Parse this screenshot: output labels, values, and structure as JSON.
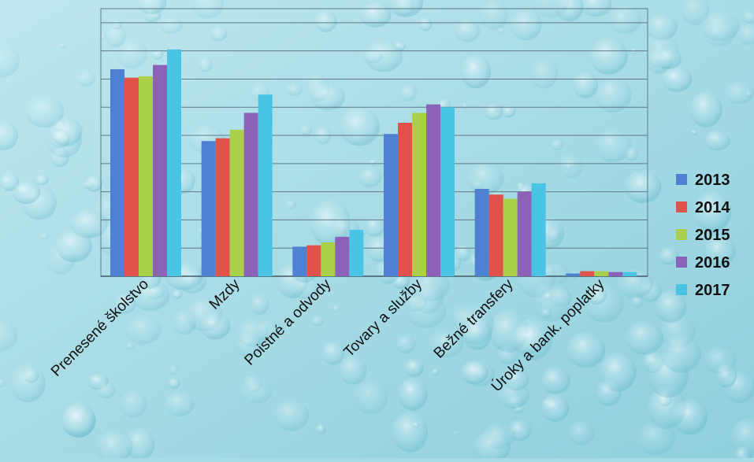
{
  "colors": {
    "background_light": "#bfe7ef",
    "background_dark": "#8fcfdc",
    "gridline": "#5f7b86",
    "axis": "#3f5a66",
    "label_text": "#111111"
  },
  "chart_data": {
    "type": "bar",
    "title": "",
    "xlabel": "",
    "ylabel": "",
    "ylim": [
      0,
      9.5
    ],
    "grid": true,
    "gridline_step": 1,
    "y_tick_labels_shown": false,
    "legend_position": "right",
    "categories": [
      "Prenesené školstvo",
      "Mzdy",
      "Poistné a odvody",
      "Tovary a  služby",
      "Bežné transfery",
      "Úroky a bank. poplatky"
    ],
    "series": [
      {
        "name": "2013",
        "color": "#4f81d3",
        "values": [
          7.35,
          4.8,
          1.05,
          5.05,
          3.1,
          0.1
        ]
      },
      {
        "name": "2014",
        "color": "#e0524a",
        "values": [
          7.05,
          4.9,
          1.1,
          5.45,
          2.9,
          0.18
        ]
      },
      {
        "name": "2015",
        "color": "#a9cf4b",
        "values": [
          7.1,
          5.2,
          1.2,
          5.8,
          2.75,
          0.18
        ]
      },
      {
        "name": "2016",
        "color": "#8b62b8",
        "values": [
          7.5,
          5.8,
          1.4,
          6.1,
          3.0,
          0.15
        ]
      },
      {
        "name": "2017",
        "color": "#49c4e4",
        "values": [
          8.05,
          6.45,
          1.65,
          6.0,
          3.3,
          0.15
        ]
      }
    ]
  }
}
